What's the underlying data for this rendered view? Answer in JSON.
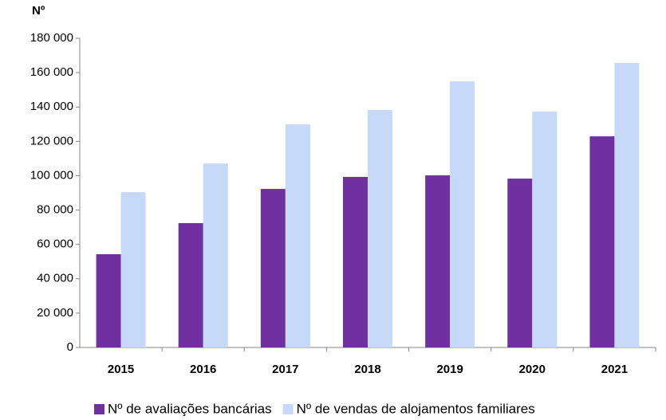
{
  "chart_data": {
    "type": "bar",
    "y_label": "Nº",
    "categories": [
      "2015",
      "2016",
      "2017",
      "2018",
      "2019",
      "2020",
      "2021"
    ],
    "series": [
      {
        "name": "Nº de avaliações bancárias",
        "color": "#7030a0",
        "values": [
          54300,
          72400,
          92300,
          99300,
          100200,
          98300,
          122900
        ]
      },
      {
        "name": "Nº de vendas de alojamentos familiares",
        "color": "#c6d9f8",
        "values": [
          90400,
          107100,
          129900,
          138200,
          154900,
          137300,
          165600
        ]
      }
    ],
    "ylim": [
      0,
      180000
    ],
    "yticks": [
      0,
      {
        "value": 20000,
        "label": "20 000"
      },
      {
        "value": 40000,
        "label": "40 000"
      },
      {
        "value": 60000,
        "label": "60 000"
      },
      {
        "value": 80000,
        "label": "80 000"
      },
      {
        "value": 100000,
        "label": "100 000"
      },
      {
        "value": 120000,
        "label": "120 000"
      },
      {
        "value": 140000,
        "label": "140 000"
      },
      {
        "value": 160000,
        "label": "160 000"
      },
      {
        "value": 180000,
        "label": "180 000"
      }
    ],
    "grid": false,
    "legend": "bottom"
  }
}
